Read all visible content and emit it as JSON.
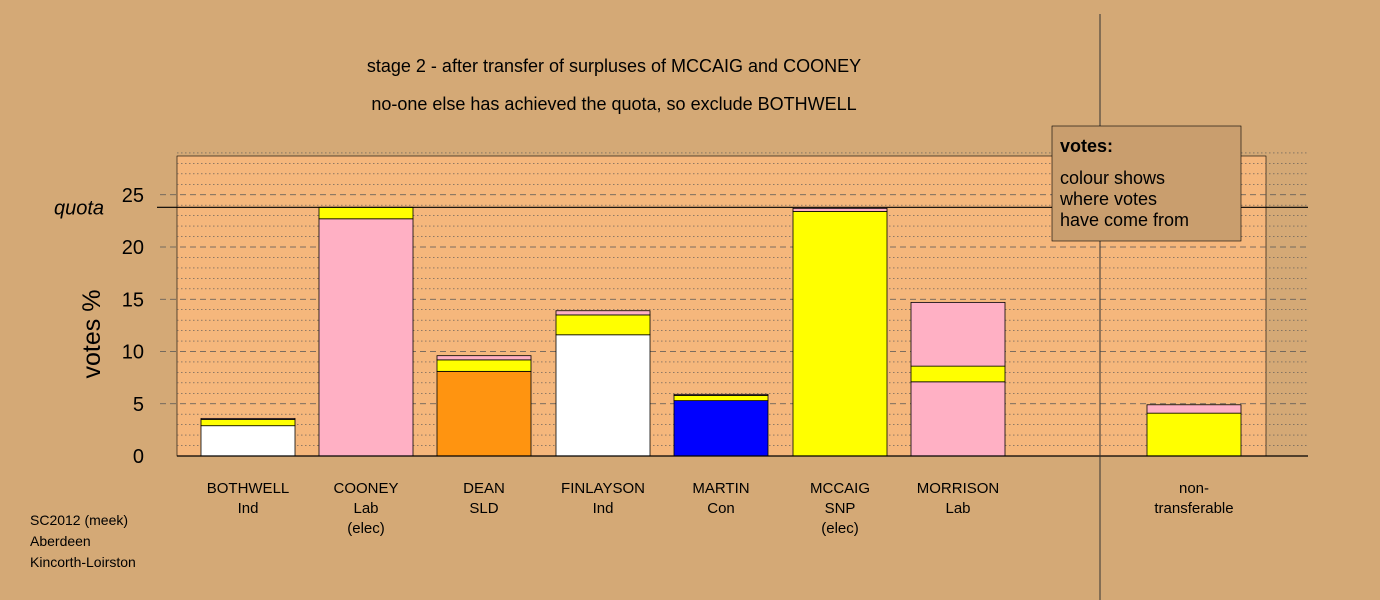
{
  "chart_data": {
    "type": "bar",
    "title": "stage 2 - after transfer of surpluses of MCCAIG and COONEY",
    "subtitle": "no-one else has achieved the quota, so exclude BOTHWELL",
    "ylabel": "votes %",
    "xlabel": "",
    "ylim": [
      0,
      29
    ],
    "yticks": [
      0,
      5,
      10,
      15,
      20,
      25
    ],
    "grid": true,
    "quota": {
      "label": "quota",
      "value": 23.8
    },
    "categories": [
      {
        "name": "BOTHWELL",
        "line2": "Ind",
        "line3": ""
      },
      {
        "name": "COONEY",
        "line2": "Lab",
        "line3": "(elec)"
      },
      {
        "name": "DEAN",
        "line2": "SLD",
        "line3": ""
      },
      {
        "name": "FINLAYSON",
        "line2": "Ind",
        "line3": ""
      },
      {
        "name": "MARTIN",
        "line2": "Con",
        "line3": ""
      },
      {
        "name": "MCCAIG",
        "line2": "SNP",
        "line3": "(elec)"
      },
      {
        "name": "MORRISON",
        "line2": "Lab",
        "line3": ""
      },
      {
        "name": "non-",
        "line2": "transferable",
        "line3": ""
      }
    ],
    "stacks": [
      [
        {
          "value": 2.9,
          "color": "#ffffff"
        },
        {
          "value": 0.6,
          "color": "#ffff00"
        },
        {
          "value": 0.1,
          "color": "#ffb0c4"
        }
      ],
      [
        {
          "value": 22.7,
          "color": "#ffb0c4"
        },
        {
          "value": 1.1,
          "color": "#ffff00"
        }
      ],
      [
        {
          "value": 8.1,
          "color": "#ff9410"
        },
        {
          "value": 1.1,
          "color": "#ffff00"
        },
        {
          "value": 0.4,
          "color": "#ffb0c4"
        }
      ],
      [
        {
          "value": 11.6,
          "color": "#ffffff"
        },
        {
          "value": 1.9,
          "color": "#ffff00"
        },
        {
          "value": 0.4,
          "color": "#ffb0c4"
        }
      ],
      [
        {
          "value": 5.3,
          "color": "#0000ff"
        },
        {
          "value": 0.5,
          "color": "#ffff00"
        },
        {
          "value": 0.1,
          "color": "#ffb0c4"
        }
      ],
      [
        {
          "value": 23.4,
          "color": "#ffff00"
        },
        {
          "value": 0.3,
          "color": "#ffb0c4"
        }
      ],
      [
        {
          "value": 7.1,
          "color": "#ffb0c4"
        },
        {
          "value": 1.5,
          "color": "#ffff00"
        },
        {
          "value": 6.1,
          "color": "#ffb0c4"
        }
      ],
      [
        {
          "value": 4.1,
          "color": "#ffff00"
        },
        {
          "value": 0.8,
          "color": "#ffb0c4"
        }
      ]
    ]
  },
  "legend": {
    "heading": "votes:",
    "lines": [
      "colour shows",
      "where votes",
      "have come from"
    ]
  },
  "footer": {
    "lines": [
      "SC2012 (meek)",
      "Aberdeen",
      "Kincorth-Loirston"
    ]
  },
  "colors": {
    "background": "#d4a976",
    "plot_panel": "#f5b77c",
    "legend_box": "#c99e6e"
  }
}
